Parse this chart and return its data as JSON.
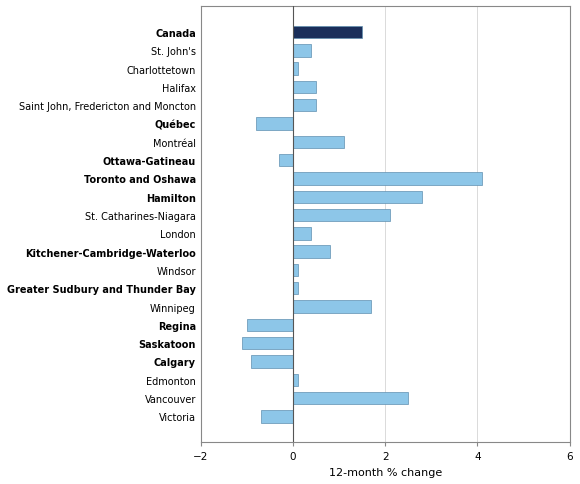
{
  "categories": [
    "Canada",
    "St. John's",
    "Charlottetown",
    "Halifax",
    "Saint John, Fredericton and Moncton",
    "Québec",
    "Montréal",
    "Ottawa-Gatineau",
    "Toronto and Oshawa",
    "Hamilton",
    "St. Catharines-Niagara",
    "London",
    "Kitchener-Cambridge-Waterloo",
    "Windsor",
    "Greater Sudbury and Thunder Bay",
    "Winnipeg",
    "Regina",
    "Saskatoon",
    "Calgary",
    "Edmonton",
    "Vancouver",
    "Victoria"
  ],
  "values": [
    1.5,
    0.4,
    0.1,
    0.5,
    0.5,
    -0.8,
    1.1,
    -0.3,
    4.1,
    2.8,
    2.1,
    0.4,
    0.8,
    0.1,
    0.1,
    1.7,
    -1.0,
    -1.1,
    -0.9,
    0.1,
    2.5,
    -0.7
  ],
  "bar_colors": [
    "#1a2e5a",
    "#8dc6e8",
    "#8dc6e8",
    "#8dc6e8",
    "#8dc6e8",
    "#8dc6e8",
    "#8dc6e8",
    "#8dc6e8",
    "#8dc6e8",
    "#8dc6e8",
    "#8dc6e8",
    "#8dc6e8",
    "#8dc6e8",
    "#8dc6e8",
    "#8dc6e8",
    "#8dc6e8",
    "#8dc6e8",
    "#8dc6e8",
    "#8dc6e8",
    "#8dc6e8",
    "#8dc6e8",
    "#8dc6e8"
  ],
  "bold_labels": [
    "Canada",
    "Québec",
    "Ottawa-Gatineau",
    "Toronto and Oshawa",
    "Hamilton",
    "Kitchener-Cambridge-Waterloo",
    "Greater Sudbury and Thunder Bay",
    "Regina",
    "Saskatoon",
    "Calgary"
  ],
  "xlabel": "12-month % change",
  "xlim": [
    -2,
    6
  ],
  "xticks": [
    -2,
    0,
    2,
    4,
    6
  ],
  "bar_height": 0.68,
  "edge_color": "#6090b0",
  "background_color": "#ffffff"
}
